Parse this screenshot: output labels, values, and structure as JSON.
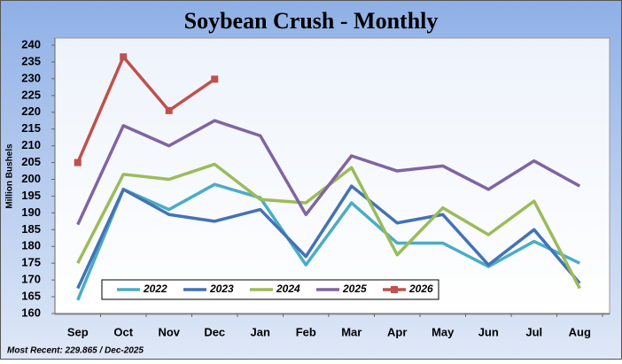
{
  "chart_data": {
    "type": "line",
    "title": "Soybean Crush - Monthly",
    "y_label": "Million Bushels",
    "footnote": "Most Recent: 229.865 / Dec-2025",
    "categories": [
      "Sep",
      "Oct",
      "Nov",
      "Dec",
      "Jan",
      "Feb",
      "Mar",
      "Apr",
      "May",
      "Jun",
      "Jul",
      "Aug"
    ],
    "ylim": [
      160,
      240
    ],
    "yticks": [
      160,
      165,
      170,
      175,
      180,
      185,
      190,
      195,
      200,
      205,
      210,
      215,
      220,
      225,
      230,
      235,
      240
    ],
    "grid": false,
    "legend": "bottom",
    "series": [
      {
        "name": "2022",
        "color": "#4bacc6",
        "values": [
          164,
          197,
          191,
          198.5,
          194.5,
          174.5,
          193,
          181,
          181,
          174,
          181.5,
          175
        ]
      },
      {
        "name": "2023",
        "color": "#4472b4",
        "values": [
          167.5,
          197,
          189.5,
          187.5,
          191,
          177,
          198,
          187,
          189.5,
          174.5,
          185,
          169
        ]
      },
      {
        "name": "2024",
        "color": "#9bbb59",
        "values": [
          175,
          201.5,
          200,
          204.5,
          194,
          193,
          203.5,
          177.5,
          191.5,
          183.5,
          193.5,
          167.5
        ]
      },
      {
        "name": "2025",
        "color": "#8064a2",
        "values": [
          186.5,
          216,
          210,
          217.5,
          213,
          189.5,
          207,
          202.5,
          204,
          197,
          205.5,
          198
        ]
      },
      {
        "name": "2026",
        "color": "#c0504d",
        "marker": "square",
        "values": [
          205,
          236.5,
          220.5,
          229.865,
          null,
          null,
          null,
          null,
          null,
          null,
          null,
          null
        ]
      }
    ]
  }
}
